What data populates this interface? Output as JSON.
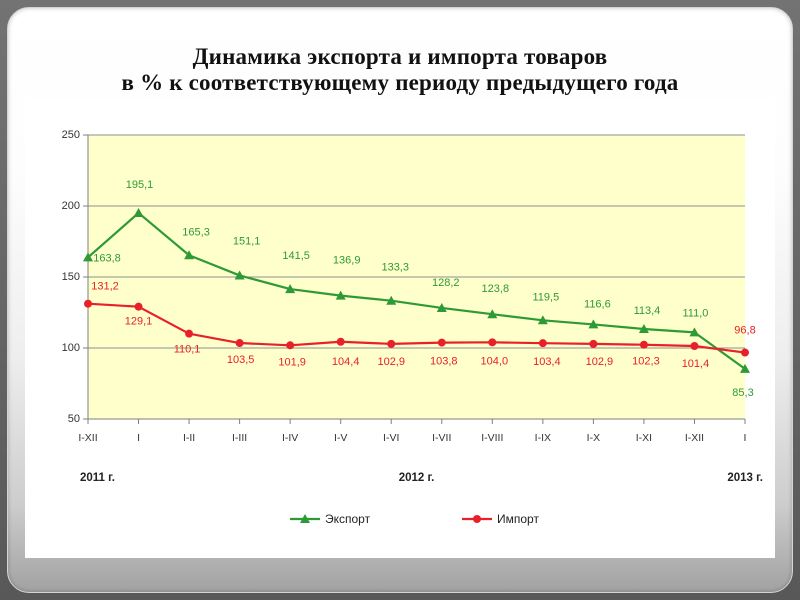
{
  "chart_data": {
    "type": "line",
    "title": "Динамика экспорта и импорта товаров",
    "subtitle": "в % к соответствующему периоду предыдущего года",
    "categories": [
      "I-XII",
      "I",
      "I-II",
      "I-III",
      "I-IV",
      "I-V",
      "I-VI",
      "I-VII",
      "I-VIII",
      "I-IX",
      "I-X",
      "I-XI",
      "I-XII",
      "I"
    ],
    "year_groups": [
      {
        "label": "2011 г.",
        "span": [
          0,
          0
        ]
      },
      {
        "label": "2012 г.",
        "span": [
          1,
          12
        ]
      },
      {
        "label": "2013 г.",
        "span": [
          13,
          13
        ]
      }
    ],
    "ylim": [
      50,
      250
    ],
    "yticks": [
      50,
      100,
      150,
      200,
      250
    ],
    "grid": true,
    "legend": "bottom",
    "colors": {
      "plot_background": "#FFFFCC",
      "gridline": "#8f8f8f",
      "axis": "#7f7f7f"
    },
    "series": [
      {
        "name": "Экспорт",
        "color": "#2e9a36",
        "marker": "triangle",
        "values": [
          163.8,
          195.1,
          165.3,
          151.1,
          141.5,
          136.9,
          133.3,
          128.2,
          123.8,
          119.5,
          116.6,
          113.4,
          111.0,
          85.3
        ]
      },
      {
        "name": "Импорт",
        "color": "#e8202a",
        "marker": "circle",
        "values": [
          131.2,
          129.1,
          110.1,
          103.5,
          101.9,
          104.4,
          102.9,
          103.8,
          104.0,
          103.4,
          102.9,
          102.3,
          101.4,
          96.8
        ]
      }
    ]
  }
}
